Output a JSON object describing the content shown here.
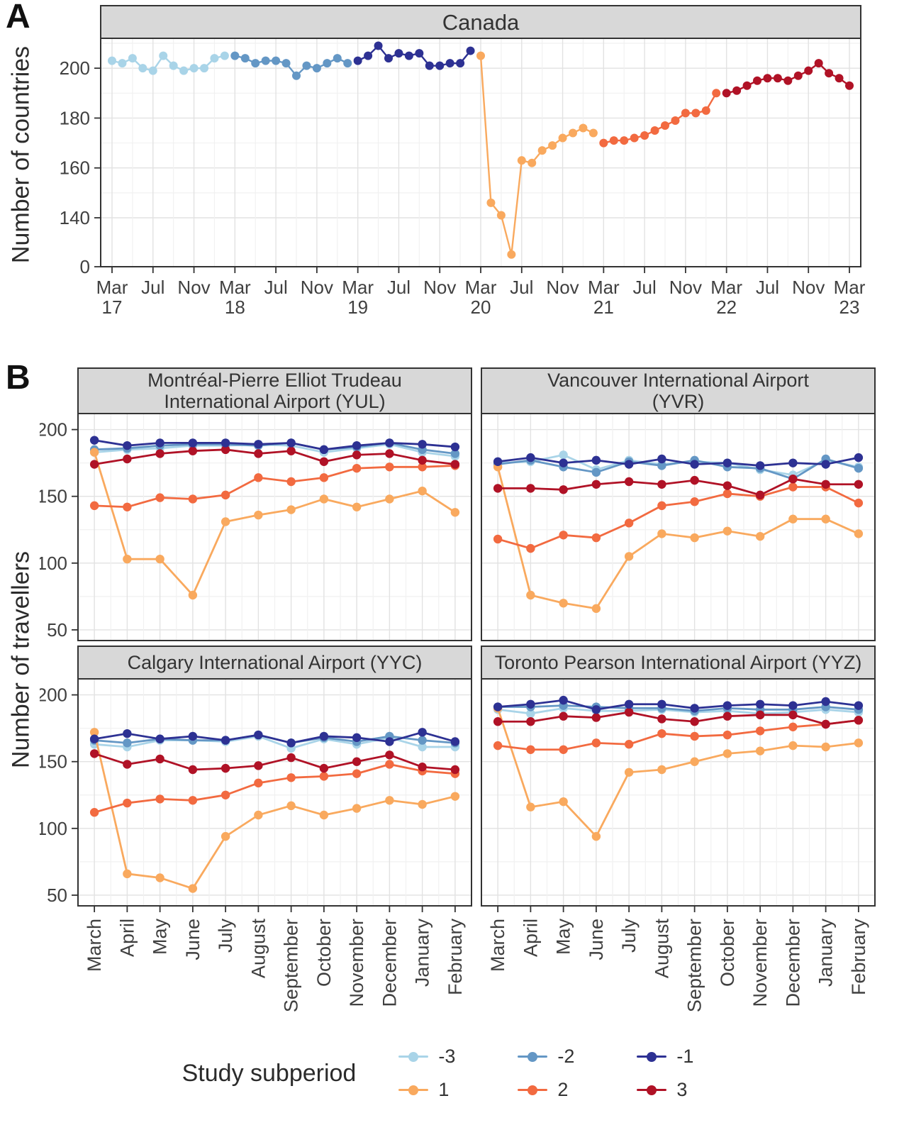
{
  "panels": {
    "a_letter": "A",
    "b_letter": "B"
  },
  "palette": {
    "-3": "#a9d4e8",
    "-2": "#6497c5",
    "-1": "#2d3193",
    "1": "#f9a95e",
    "2": "#f26a40",
    "3": "#b01226"
  },
  "legend": {
    "title": "Study subperiod",
    "items": [
      {
        "label": "-3"
      },
      {
        "label": "-2"
      },
      {
        "label": "-1"
      },
      {
        "label": "1"
      },
      {
        "label": "2"
      },
      {
        "label": "3"
      }
    ]
  },
  "chart_data": [
    {
      "type": "line",
      "title": "Canada",
      "ylabel": "Number of countries",
      "x_unit": "month",
      "x_range": [
        "Mar 2017",
        "Mar 2023"
      ],
      "ylim": [
        0,
        212
      ],
      "y_axis_note": "y axis compressed between 0 and 140 (break below 140)",
      "grid": true,
      "y_ticks": [
        0,
        140,
        160,
        180,
        200
      ],
      "y_minor_ticks": [
        150,
        170,
        190,
        210
      ],
      "x_ticks": [
        {
          "index": 0,
          "label": "Mar",
          "year": "17"
        },
        {
          "index": 4,
          "label": "Jul"
        },
        {
          "index": 8,
          "label": "Nov"
        },
        {
          "index": 12,
          "label": "Mar",
          "year": "18"
        },
        {
          "index": 16,
          "label": "Jul"
        },
        {
          "index": 20,
          "label": "Nov"
        },
        {
          "index": 24,
          "label": "Mar",
          "year": "19"
        },
        {
          "index": 28,
          "label": "Jul"
        },
        {
          "index": 32,
          "label": "Nov"
        },
        {
          "index": 36,
          "label": "Mar",
          "year": "20"
        },
        {
          "index": 40,
          "label": "Jul"
        },
        {
          "index": 44,
          "label": "Nov"
        },
        {
          "index": 48,
          "label": "Mar",
          "year": "21"
        },
        {
          "index": 52,
          "label": "Jul"
        },
        {
          "index": 56,
          "label": "Nov"
        },
        {
          "index": 60,
          "label": "Mar",
          "year": "22"
        },
        {
          "index": 64,
          "label": "Jul"
        },
        {
          "index": 68,
          "label": "Nov"
        },
        {
          "index": 72,
          "label": "Mar",
          "year": "23"
        }
      ],
      "series": [
        {
          "name": "-3",
          "subperiod": "-3",
          "x_start_index": 0,
          "values": [
            203,
            202,
            204,
            200,
            199,
            205,
            201,
            199,
            200,
            200,
            204,
            205
          ]
        },
        {
          "name": "-2",
          "subperiod": "-2",
          "x_start_index": 12,
          "values": [
            205,
            204,
            202,
            203,
            203,
            202,
            197,
            201,
            200,
            202,
            204,
            202
          ]
        },
        {
          "name": "-1",
          "subperiod": "-1",
          "x_start_index": 24,
          "values": [
            203,
            205,
            209,
            204,
            206,
            205,
            206,
            201,
            201,
            202,
            202,
            207
          ]
        },
        {
          "name": "1",
          "subperiod": "1",
          "x_start_index": 36,
          "values": [
            205,
            146,
            141,
            35,
            163,
            162,
            167,
            169,
            172,
            174,
            176,
            174
          ]
        },
        {
          "name": "2",
          "subperiod": "2",
          "x_start_index": 48,
          "values": [
            170,
            171,
            171,
            172,
            173,
            175,
            177,
            179,
            182,
            182,
            183,
            190
          ]
        },
        {
          "name": "3",
          "subperiod": "3",
          "x_start_index": 60,
          "values": [
            190,
            191,
            193,
            195,
            196,
            196,
            195,
            197,
            199,
            202,
            198,
            196,
            193
          ]
        }
      ]
    },
    {
      "type": "line",
      "ylabel": "Number of travellers",
      "legend_title": "Study subperiod",
      "categories": [
        "March",
        "April",
        "May",
        "June",
        "July",
        "August",
        "September",
        "October",
        "November",
        "December",
        "January",
        "February"
      ],
      "ylim": [
        42,
        212
      ],
      "grid": true,
      "legend_position": "bottom",
      "y_ticks": [
        50,
        100,
        150,
        200
      ],
      "y_minor_ticks": [
        75,
        125,
        175
      ],
      "facets": [
        {
          "code": "YUL",
          "strip_lines": [
            "Montréal-Pierre Elliot Trudeau",
            "International Airport (YUL)"
          ],
          "series": [
            {
              "name": "-3",
              "values": [
                183,
                185,
                186,
                188,
                188,
                189,
                188,
                183,
                186,
                189,
                183,
                180
              ]
            },
            {
              "name": "-2",
              "values": [
                185,
                186,
                188,
                189,
                189,
                188,
                190,
                185,
                187,
                190,
                185,
                182
              ]
            },
            {
              "name": "-1",
              "values": [
                192,
                188,
                190,
                190,
                190,
                189,
                190,
                185,
                188,
                190,
                189,
                187
              ]
            },
            {
              "name": "1",
              "values": [
                183,
                103,
                103,
                76,
                131,
                136,
                140,
                148,
                142,
                148,
                154,
                138
              ]
            },
            {
              "name": "2",
              "values": [
                143,
                142,
                149,
                148,
                151,
                164,
                161,
                164,
                171,
                172,
                172,
                173
              ]
            },
            {
              "name": "3",
              "values": [
                174,
                178,
                182,
                184,
                185,
                182,
                184,
                176,
                181,
                182,
                177,
                174
              ]
            }
          ]
        },
        {
          "code": "YVR",
          "strip_lines": [
            "Vancouver International Airport",
            "(YVR)"
          ],
          "series": [
            {
              "name": "-3",
              "values": [
                175,
                176,
                181,
                170,
                177,
                174,
                176,
                175,
                170,
                166,
                177,
                172
              ]
            },
            {
              "name": "-2",
              "values": [
                174,
                177,
                172,
                168,
                176,
                173,
                177,
                172,
                171,
                163,
                178,
                171
              ]
            },
            {
              "name": "-1",
              "values": [
                176,
                179,
                175,
                177,
                174,
                178,
                174,
                175,
                173,
                175,
                174,
                179
              ]
            },
            {
              "name": "1",
              "values": [
                172,
                76,
                70,
                66,
                105,
                122,
                119,
                124,
                120,
                133,
                133,
                122
              ]
            },
            {
              "name": "2",
              "values": [
                118,
                111,
                121,
                119,
                130,
                143,
                146,
                152,
                150,
                157,
                157,
                145
              ]
            },
            {
              "name": "3",
              "values": [
                156,
                156,
                155,
                159,
                161,
                159,
                162,
                158,
                151,
                163,
                159,
                159
              ]
            }
          ]
        },
        {
          "code": "YYC",
          "strip_lines": [
            "Calgary International Airport (YYC)"
          ],
          "series": [
            {
              "name": "-3",
              "values": [
                163,
                161,
                166,
                166,
                165,
                169,
                160,
                167,
                163,
                168,
                161,
                161
              ]
            },
            {
              "name": "-2",
              "values": [
                166,
                164,
                167,
                166,
                166,
                170,
                164,
                168,
                165,
                169,
                166,
                164
              ]
            },
            {
              "name": "-1",
              "values": [
                167,
                171,
                167,
                169,
                166,
                170,
                164,
                169,
                168,
                165,
                172,
                165
              ]
            },
            {
              "name": "1",
              "values": [
                172,
                66,
                63,
                55,
                94,
                110,
                117,
                110,
                115,
                121,
                118,
                124
              ]
            },
            {
              "name": "2",
              "values": [
                112,
                119,
                122,
                121,
                125,
                134,
                138,
                139,
                141,
                148,
                143,
                141
              ]
            },
            {
              "name": "3",
              "values": [
                156,
                148,
                152,
                144,
                145,
                147,
                153,
                145,
                150,
                155,
                146,
                144
              ]
            }
          ]
        },
        {
          "code": "YYZ",
          "strip_lines": [
            "Toronto Pearson International Airport (YYZ)"
          ],
          "series": [
            {
              "name": "-3",
              "values": [
                189,
                186,
                190,
                188,
                188,
                189,
                187,
                188,
                186,
                187,
                189,
                187
              ]
            },
            {
              "name": "-2",
              "values": [
                191,
                191,
                192,
                191,
                190,
                190,
                188,
                190,
                189,
                189,
                191,
                189
              ]
            },
            {
              "name": "-1",
              "values": [
                191,
                193,
                196,
                189,
                193,
                193,
                190,
                192,
                193,
                192,
                195,
                192
              ]
            },
            {
              "name": "1",
              "values": [
                190,
                116,
                120,
                94,
                142,
                144,
                150,
                156,
                158,
                162,
                161,
                164
              ]
            },
            {
              "name": "2",
              "values": [
                162,
                159,
                159,
                164,
                163,
                171,
                169,
                170,
                173,
                176,
                178,
                181
              ]
            },
            {
              "name": "3",
              "values": [
                180,
                180,
                184,
                183,
                187,
                182,
                180,
                184,
                185,
                185,
                178,
                181
              ]
            }
          ]
        }
      ]
    }
  ]
}
